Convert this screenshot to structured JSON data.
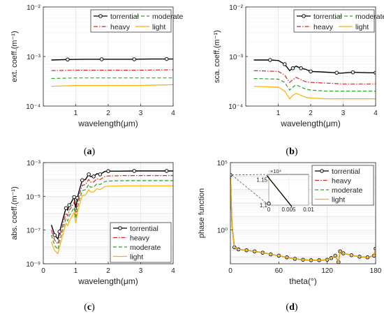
{
  "chart_data": [
    {
      "panel": "(a)",
      "type": "line",
      "xlabel": "wavelength(μm)",
      "ylabel": "ext. coeff.(m⁻¹)",
      "xlim": [
        0,
        4
      ],
      "ylim": [
        0.0001,
        0.01
      ],
      "yscale": "log",
      "x_ticks": [
        1,
        2,
        3,
        4
      ],
      "x_tick_labels": [
        "1",
        "2",
        "3",
        "4"
      ],
      "y_ticks": [
        0.0001,
        0.001,
        0.01
      ],
      "y_tick_labels": [
        "10⁻⁴",
        "10⁻³",
        "10⁻²"
      ],
      "grid": true,
      "legend_position": "top",
      "legend_columns": 2,
      "series": [
        {
          "name": "torrential",
          "color": "#000000",
          "style": "solid-circle",
          "x": [
            0.25,
            0.75,
            1.3,
            1.8,
            2.3,
            2.8,
            3.3,
            3.8,
            4.0
          ],
          "y": [
            0.00085,
            0.00087,
            0.00088,
            0.00088,
            0.00088,
            0.00088,
            0.00089,
            0.00089,
            0.00089
          ]
        },
        {
          "name": "heavy",
          "color": "#d62728",
          "style": "dashdot",
          "x": [
            0.25,
            1.0,
            2.0,
            3.0,
            4.0
          ],
          "y": [
            0.00052,
            0.00053,
            0.00053,
            0.00053,
            0.00054
          ]
        },
        {
          "name": "moderate",
          "color": "#2ca02c",
          "style": "dashed",
          "x": [
            0.25,
            1.0,
            2.0,
            3.0,
            4.0
          ],
          "y": [
            0.00036,
            0.00037,
            0.00037,
            0.00037,
            0.00037
          ]
        },
        {
          "name": "light",
          "color": "#ffb000",
          "style": "solid",
          "x": [
            0.25,
            1.0,
            2.0,
            3.0,
            4.0
          ],
          "y": [
            0.00025,
            0.00026,
            0.00026,
            0.00026,
            0.00027
          ]
        }
      ]
    },
    {
      "panel": "(b)",
      "type": "line",
      "xlabel": "wavelength(μm)",
      "ylabel": "sca. coeff.(m⁻¹)",
      "xlim": [
        0,
        4
      ],
      "ylim": [
        0.0001,
        0.01
      ],
      "yscale": "log",
      "x_ticks": [
        1,
        2,
        3,
        4
      ],
      "x_tick_labels": [
        "1",
        "2",
        "3",
        "4"
      ],
      "y_ticks": [
        0.0001,
        0.001,
        0.01
      ],
      "y_tick_labels": [
        "10⁻⁴",
        "10⁻³",
        "10⁻²"
      ],
      "grid": true,
      "legend_position": "top",
      "legend_columns": 2,
      "series": [
        {
          "name": "torrential",
          "color": "#000000",
          "style": "solid-circle",
          "x": [
            0.25,
            0.75,
            1.0,
            1.2,
            1.35,
            1.45,
            1.55,
            1.7,
            1.85,
            2.0,
            2.3,
            2.8,
            2.9,
            3.3,
            3.8,
            4.0
          ],
          "y": [
            0.00085,
            0.00085,
            0.00083,
            0.0007,
            0.00052,
            0.00058,
            0.00064,
            0.00058,
            0.00055,
            0.0005,
            0.00049,
            0.00047,
            0.00046,
            0.00048,
            0.00047,
            0.00047
          ]
        },
        {
          "name": "heavy",
          "color": "#d62728",
          "style": "dashdot",
          "x": [
            0.25,
            1.0,
            1.2,
            1.35,
            1.45,
            1.55,
            1.7,
            1.85,
            2.0,
            2.5,
            3.0,
            4.0
          ],
          "y": [
            0.00052,
            0.0005,
            0.00042,
            0.0003,
            0.00034,
            0.00038,
            0.00034,
            0.00031,
            0.0003,
            0.00029,
            0.00028,
            0.00028
          ]
        },
        {
          "name": "moderate",
          "color": "#2ca02c",
          "style": "dashed",
          "x": [
            0.25,
            1.0,
            1.2,
            1.35,
            1.45,
            1.55,
            1.7,
            1.85,
            2.0,
            2.5,
            3.0,
            4.0
          ],
          "y": [
            0.00036,
            0.00035,
            0.0003,
            0.00021,
            0.00024,
            0.00027,
            0.00024,
            0.00022,
            0.00021,
            0.0002,
            0.0002,
            0.0002
          ]
        },
        {
          "name": "light",
          "color": "#ffb000",
          "style": "solid",
          "x": [
            0.25,
            1.0,
            1.2,
            1.35,
            1.45,
            1.55,
            1.7,
            1.85,
            2.0,
            2.5,
            3.0,
            4.0
          ],
          "y": [
            0.00025,
            0.00024,
            0.0002,
            0.00014,
            0.000165,
            0.00018,
            0.000165,
            0.00015,
            0.000145,
            0.00014,
            0.00014,
            0.00014
          ]
        }
      ]
    },
    {
      "panel": "(c)",
      "type": "line",
      "xlabel": "wavelength(μm)",
      "ylabel": "abs. coeff.(m⁻¹)",
      "xlim": [
        0,
        4
      ],
      "ylim": [
        1e-09,
        0.001
      ],
      "yscale": "log",
      "x_ticks": [
        0,
        1,
        2,
        3,
        4
      ],
      "x_tick_labels": [
        "0",
        "1",
        "2",
        "3",
        "4"
      ],
      "y_ticks": [
        1e-09,
        1e-07,
        1e-05,
        0.001
      ],
      "y_tick_labels": [
        "10⁻⁹",
        "10⁻⁷",
        "10⁻⁵",
        "10⁻³"
      ],
      "grid": true,
      "legend_position": "bottom-right",
      "legend_columns": 1,
      "series": [
        {
          "name": "torrential",
          "color": "#000000",
          "style": "solid-circle",
          "x": [
            0.25,
            0.35,
            0.45,
            0.5,
            0.6,
            0.7,
            0.75,
            0.8,
            0.85,
            0.95,
            1.0,
            1.05,
            1.1,
            1.2,
            1.3,
            1.4,
            1.45,
            1.55,
            1.65,
            1.75,
            1.9,
            2.0,
            2.3,
            2.8,
            3.3,
            3.8,
            4.0
          ],
          "y": [
            2e-07,
            5e-08,
            3e-08,
            8e-08,
            4e-07,
            2e-06,
            1.5e-06,
            3e-06,
            4e-06,
            9e-06,
            2e-06,
            8e-06,
            2e-05,
            9e-05,
            0.0001,
            0.0002,
            0.00015,
            0.00015,
            0.00022,
            0.0002,
            0.0003,
            0.00031,
            0.00031,
            0.00032,
            0.00032,
            0.00032,
            0.00032
          ]
        },
        {
          "name": "heavy",
          "color": "#d62728",
          "style": "dashdot",
          "x": [
            0.25,
            0.35,
            0.45,
            0.5,
            0.6,
            0.7,
            0.75,
            0.8,
            0.85,
            0.95,
            1.0,
            1.05,
            1.1,
            1.2,
            1.3,
            1.4,
            1.45,
            1.55,
            1.65,
            1.75,
            1.9,
            2.0,
            2.5,
            3.0,
            4.0
          ],
          "y": [
            1e-07,
            2.5e-08,
            1.5e-08,
            4e-08,
            2e-07,
            1e-06,
            7e-07,
            1.5e-06,
            2e-06,
            4.5e-06,
            1e-06,
            4e-06,
            1e-05,
            4.5e-05,
            5e-05,
            0.0001,
            7e-05,
            7e-05,
            0.00011,
            0.0001,
            0.00015,
            0.00016,
            0.00017,
            0.00017,
            0.00017
          ]
        },
        {
          "name": "moderate",
          "color": "#2ca02c",
          "style": "dashed",
          "x": [
            0.25,
            0.35,
            0.45,
            0.5,
            0.6,
            0.7,
            0.75,
            0.8,
            0.85,
            0.95,
            1.0,
            1.05,
            1.1,
            1.2,
            1.3,
            1.4,
            1.45,
            1.55,
            1.65,
            1.75,
            1.9,
            2.0,
            2.5,
            3.0,
            4.0
          ],
          "y": [
            5e-08,
            1.2e-08,
            7e-09,
            2e-08,
            1e-07,
            5e-07,
            3.5e-07,
            7e-07,
            1e-06,
            2.2e-06,
            5e-07,
            2e-06,
            5e-06,
            2.2e-05,
            2.5e-05,
            5e-05,
            3.5e-05,
            3.5e-05,
            5.5e-05,
            5e-05,
            7.5e-05,
            8e-05,
            8.5e-05,
            8.5e-05,
            8.5e-05
          ]
        },
        {
          "name": "light",
          "color": "#ffb000",
          "style": "solid",
          "x": [
            0.25,
            0.35,
            0.45,
            0.5,
            0.6,
            0.7,
            0.75,
            0.8,
            0.85,
            0.95,
            1.0,
            1.05,
            1.1,
            1.2,
            1.3,
            1.4,
            1.45,
            1.55,
            1.65,
            1.75,
            1.9,
            2.0,
            2.5,
            3.0,
            4.0
          ],
          "y": [
            2e-08,
            6e-09,
            4e-09,
            1e-08,
            5e-08,
            2.5e-07,
            1.8e-07,
            3.5e-07,
            5e-07,
            1.1e-06,
            2.5e-07,
            1e-06,
            2.5e-06,
            1.1e-05,
            1.2e-05,
            2.5e-05,
            1.8e-05,
            1.8e-05,
            2.8e-05,
            2.5e-05,
            3.8e-05,
            4e-05,
            4.2e-05,
            4.2e-05,
            4.2e-05
          ]
        }
      ]
    },
    {
      "panel": "(d)",
      "type": "line",
      "xlabel": "theta(°)",
      "ylabel": "phase function",
      "xlim": [
        0,
        180
      ],
      "ylim": [
        0.003,
        100000
      ],
      "yscale": "log",
      "x_ticks": [
        0,
        60,
        120,
        180
      ],
      "x_tick_labels": [
        "0",
        "60",
        "120",
        "180"
      ],
      "y_ticks": [
        1,
        100000
      ],
      "y_tick_labels": [
        "10⁰",
        "10⁵"
      ],
      "grid": true,
      "legend_position": "top-right",
      "legend_columns": 1,
      "series": [
        {
          "name": "torrential",
          "color": "#000000",
          "style": "solid-circle",
          "x": [
            0,
            0.5,
            1,
            2,
            5,
            10,
            20,
            30,
            40,
            50,
            60,
            70,
            80,
            90,
            100,
            110,
            120,
            125,
            130,
            134,
            136,
            140,
            150,
            160,
            170,
            178,
            180
          ],
          "y": [
            12000,
            1000,
            100,
            2,
            0.05,
            0.035,
            0.03,
            0.025,
            0.02,
            0.015,
            0.012,
            0.009,
            0.007,
            0.006,
            0.0055,
            0.0055,
            0.006,
            0.008,
            0.012,
            0.004,
            0.025,
            0.018,
            0.013,
            0.01,
            0.009,
            0.012,
            0.04
          ]
        },
        {
          "name": "heavy",
          "color": "#d62728",
          "style": "dashdot",
          "x": [
            0,
            0.5,
            1,
            2,
            5,
            10,
            20,
            30,
            40,
            50,
            60,
            70,
            80,
            90,
            100,
            110,
            120,
            125,
            130,
            134,
            136,
            140,
            150,
            160,
            170,
            178,
            180
          ],
          "y": [
            12000,
            1000,
            100,
            2,
            0.05,
            0.035,
            0.03,
            0.025,
            0.02,
            0.015,
            0.012,
            0.009,
            0.007,
            0.006,
            0.0055,
            0.0055,
            0.006,
            0.008,
            0.012,
            0.004,
            0.025,
            0.018,
            0.013,
            0.01,
            0.009,
            0.012,
            0.04
          ]
        },
        {
          "name": "moderate",
          "color": "#2ca02c",
          "style": "dashed",
          "x": [
            0,
            0.5,
            1,
            2,
            5,
            10,
            20,
            30,
            40,
            50,
            60,
            70,
            80,
            90,
            100,
            110,
            120,
            125,
            130,
            134,
            136,
            140,
            150,
            160,
            170,
            178,
            180
          ],
          "y": [
            12000,
            1000,
            100,
            2,
            0.05,
            0.035,
            0.03,
            0.025,
            0.02,
            0.015,
            0.012,
            0.009,
            0.007,
            0.006,
            0.0055,
            0.0055,
            0.006,
            0.008,
            0.012,
            0.004,
            0.025,
            0.018,
            0.013,
            0.01,
            0.009,
            0.012,
            0.04
          ]
        },
        {
          "name": "light",
          "color": "#ffb000",
          "style": "solid",
          "x": [
            0,
            0.5,
            1,
            2,
            5,
            10,
            20,
            30,
            40,
            50,
            60,
            70,
            80,
            90,
            100,
            110,
            120,
            125,
            130,
            134,
            136,
            140,
            150,
            160,
            170,
            178,
            180
          ],
          "y": [
            12000,
            1000,
            100,
            2,
            0.05,
            0.035,
            0.03,
            0.025,
            0.02,
            0.015,
            0.012,
            0.009,
            0.007,
            0.006,
            0.0055,
            0.0055,
            0.006,
            0.008,
            0.012,
            0.004,
            0.025,
            0.018,
            0.013,
            0.01,
            0.009,
            0.012,
            0.04
          ]
        }
      ],
      "inset": {
        "xlim": [
          0,
          0.01
        ],
        "ylim": [
          11000,
          11600
        ],
        "x_ticks": [
          0,
          0.005,
          0.01
        ],
        "x_tick_labels": [
          "0",
          "0.005",
          "0.01"
        ],
        "y_ticks": [
          11000,
          11500
        ],
        "y_tick_labels": [
          "1.1",
          "1.15"
        ],
        "y_multiplier": "×10⁴",
        "line": {
          "x": [
            -0.0005,
            0.0058
          ],
          "y": [
            11580,
            10970
          ]
        },
        "marker": {
          "x": 0,
          "y": 11030
        }
      }
    }
  ]
}
